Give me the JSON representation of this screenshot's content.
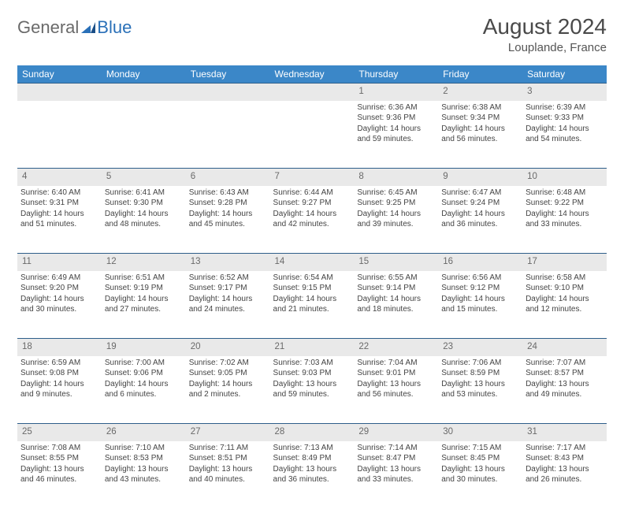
{
  "logo": {
    "word1": "General",
    "word2": "Blue"
  },
  "header": {
    "title": "August 2024",
    "location": "Louplande, France"
  },
  "styling": {
    "header_bg": "#3b87c8",
    "header_text": "#ffffff",
    "daynum_bg": "#e9e9e9",
    "daynum_text": "#6a6a6a",
    "cell_text": "#444444",
    "rule_color": "#2e5e8a",
    "month_title_fontsize": 28,
    "location_fontsize": 15,
    "dayname_fontsize": 12,
    "daynum_fontsize": 11.5,
    "cell_fontsize": 10
  },
  "daynames": [
    "Sunday",
    "Monday",
    "Tuesday",
    "Wednesday",
    "Thursday",
    "Friday",
    "Saturday"
  ],
  "weeks": [
    [
      null,
      null,
      null,
      null,
      {
        "n": "1",
        "sr": "Sunrise: 6:36 AM",
        "ss": "Sunset: 9:36 PM",
        "dl": "Daylight: 14 hours and 59 minutes."
      },
      {
        "n": "2",
        "sr": "Sunrise: 6:38 AM",
        "ss": "Sunset: 9:34 PM",
        "dl": "Daylight: 14 hours and 56 minutes."
      },
      {
        "n": "3",
        "sr": "Sunrise: 6:39 AM",
        "ss": "Sunset: 9:33 PM",
        "dl": "Daylight: 14 hours and 54 minutes."
      }
    ],
    [
      {
        "n": "4",
        "sr": "Sunrise: 6:40 AM",
        "ss": "Sunset: 9:31 PM",
        "dl": "Daylight: 14 hours and 51 minutes."
      },
      {
        "n": "5",
        "sr": "Sunrise: 6:41 AM",
        "ss": "Sunset: 9:30 PM",
        "dl": "Daylight: 14 hours and 48 minutes."
      },
      {
        "n": "6",
        "sr": "Sunrise: 6:43 AM",
        "ss": "Sunset: 9:28 PM",
        "dl": "Daylight: 14 hours and 45 minutes."
      },
      {
        "n": "7",
        "sr": "Sunrise: 6:44 AM",
        "ss": "Sunset: 9:27 PM",
        "dl": "Daylight: 14 hours and 42 minutes."
      },
      {
        "n": "8",
        "sr": "Sunrise: 6:45 AM",
        "ss": "Sunset: 9:25 PM",
        "dl": "Daylight: 14 hours and 39 minutes."
      },
      {
        "n": "9",
        "sr": "Sunrise: 6:47 AM",
        "ss": "Sunset: 9:24 PM",
        "dl": "Daylight: 14 hours and 36 minutes."
      },
      {
        "n": "10",
        "sr": "Sunrise: 6:48 AM",
        "ss": "Sunset: 9:22 PM",
        "dl": "Daylight: 14 hours and 33 minutes."
      }
    ],
    [
      {
        "n": "11",
        "sr": "Sunrise: 6:49 AM",
        "ss": "Sunset: 9:20 PM",
        "dl": "Daylight: 14 hours and 30 minutes."
      },
      {
        "n": "12",
        "sr": "Sunrise: 6:51 AM",
        "ss": "Sunset: 9:19 PM",
        "dl": "Daylight: 14 hours and 27 minutes."
      },
      {
        "n": "13",
        "sr": "Sunrise: 6:52 AM",
        "ss": "Sunset: 9:17 PM",
        "dl": "Daylight: 14 hours and 24 minutes."
      },
      {
        "n": "14",
        "sr": "Sunrise: 6:54 AM",
        "ss": "Sunset: 9:15 PM",
        "dl": "Daylight: 14 hours and 21 minutes."
      },
      {
        "n": "15",
        "sr": "Sunrise: 6:55 AM",
        "ss": "Sunset: 9:14 PM",
        "dl": "Daylight: 14 hours and 18 minutes."
      },
      {
        "n": "16",
        "sr": "Sunrise: 6:56 AM",
        "ss": "Sunset: 9:12 PM",
        "dl": "Daylight: 14 hours and 15 minutes."
      },
      {
        "n": "17",
        "sr": "Sunrise: 6:58 AM",
        "ss": "Sunset: 9:10 PM",
        "dl": "Daylight: 14 hours and 12 minutes."
      }
    ],
    [
      {
        "n": "18",
        "sr": "Sunrise: 6:59 AM",
        "ss": "Sunset: 9:08 PM",
        "dl": "Daylight: 14 hours and 9 minutes."
      },
      {
        "n": "19",
        "sr": "Sunrise: 7:00 AM",
        "ss": "Sunset: 9:06 PM",
        "dl": "Daylight: 14 hours and 6 minutes."
      },
      {
        "n": "20",
        "sr": "Sunrise: 7:02 AM",
        "ss": "Sunset: 9:05 PM",
        "dl": "Daylight: 14 hours and 2 minutes."
      },
      {
        "n": "21",
        "sr": "Sunrise: 7:03 AM",
        "ss": "Sunset: 9:03 PM",
        "dl": "Daylight: 13 hours and 59 minutes."
      },
      {
        "n": "22",
        "sr": "Sunrise: 7:04 AM",
        "ss": "Sunset: 9:01 PM",
        "dl": "Daylight: 13 hours and 56 minutes."
      },
      {
        "n": "23",
        "sr": "Sunrise: 7:06 AM",
        "ss": "Sunset: 8:59 PM",
        "dl": "Daylight: 13 hours and 53 minutes."
      },
      {
        "n": "24",
        "sr": "Sunrise: 7:07 AM",
        "ss": "Sunset: 8:57 PM",
        "dl": "Daylight: 13 hours and 49 minutes."
      }
    ],
    [
      {
        "n": "25",
        "sr": "Sunrise: 7:08 AM",
        "ss": "Sunset: 8:55 PM",
        "dl": "Daylight: 13 hours and 46 minutes."
      },
      {
        "n": "26",
        "sr": "Sunrise: 7:10 AM",
        "ss": "Sunset: 8:53 PM",
        "dl": "Daylight: 13 hours and 43 minutes."
      },
      {
        "n": "27",
        "sr": "Sunrise: 7:11 AM",
        "ss": "Sunset: 8:51 PM",
        "dl": "Daylight: 13 hours and 40 minutes."
      },
      {
        "n": "28",
        "sr": "Sunrise: 7:13 AM",
        "ss": "Sunset: 8:49 PM",
        "dl": "Daylight: 13 hours and 36 minutes."
      },
      {
        "n": "29",
        "sr": "Sunrise: 7:14 AM",
        "ss": "Sunset: 8:47 PM",
        "dl": "Daylight: 13 hours and 33 minutes."
      },
      {
        "n": "30",
        "sr": "Sunrise: 7:15 AM",
        "ss": "Sunset: 8:45 PM",
        "dl": "Daylight: 13 hours and 30 minutes."
      },
      {
        "n": "31",
        "sr": "Sunrise: 7:17 AM",
        "ss": "Sunset: 8:43 PM",
        "dl": "Daylight: 13 hours and 26 minutes."
      }
    ]
  ]
}
